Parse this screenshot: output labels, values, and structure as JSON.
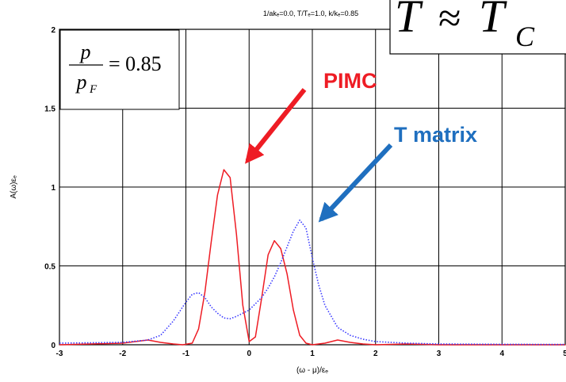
{
  "chart_data": {
    "type": "line",
    "title": "1/ak_F=0.0, T/T_c=1.0, k/k_F=0.85",
    "title_display": "1/akₑ=0.0, T/Tₑ=1.0, k/kₑ=0.85",
    "xlabel": "(ω - μ)/ε_F",
    "xlabel_display": "(ω - μ)/εₑ",
    "ylabel": "A(ω)ε_F",
    "ylabel_display": "A(ω)εₑ",
    "xlim": [
      -3,
      5
    ],
    "ylim": [
      0,
      2
    ],
    "xticks": [
      -3,
      -2,
      -1,
      0,
      1,
      2,
      3,
      4,
      5
    ],
    "yticks": [
      0,
      0.5,
      1,
      1.5,
      2
    ],
    "ytick_labels": [
      "0",
      "0.5",
      "1",
      "1.5",
      "2"
    ],
    "grid": true,
    "legend": "none",
    "series": [
      {
        "name": "PIMC",
        "color": "#ee1c24",
        "style": "solid",
        "x": [
          -3.0,
          -2.5,
          -2.0,
          -1.8,
          -1.6,
          -1.4,
          -1.2,
          -1.05,
          -0.9,
          -0.8,
          -0.7,
          -0.6,
          -0.5,
          -0.4,
          -0.3,
          -0.2,
          -0.1,
          0.0,
          0.1,
          0.2,
          0.3,
          0.4,
          0.5,
          0.6,
          0.7,
          0.8,
          0.9,
          1.0,
          1.2,
          1.4,
          1.6,
          1.8,
          2.0,
          2.5,
          3.0,
          3.5,
          4.0,
          5.0
        ],
        "y": [
          0.0,
          0.005,
          0.01,
          0.02,
          0.03,
          0.015,
          0.005,
          0.0,
          0.01,
          0.1,
          0.33,
          0.65,
          0.95,
          1.11,
          1.06,
          0.7,
          0.25,
          0.02,
          0.05,
          0.3,
          0.57,
          0.66,
          0.61,
          0.45,
          0.22,
          0.06,
          0.01,
          0.0,
          0.01,
          0.03,
          0.015,
          0.005,
          0.0,
          0.005,
          0.0,
          0.0,
          0.0,
          0.0
        ]
      },
      {
        "name": "T matrix",
        "color": "#3a3aff",
        "style": "dotted",
        "x": [
          -3.0,
          -2.0,
          -1.6,
          -1.4,
          -1.2,
          -1.1,
          -1.0,
          -0.9,
          -0.8,
          -0.7,
          -0.6,
          -0.5,
          -0.4,
          -0.3,
          -0.2,
          -0.1,
          0.0,
          0.1,
          0.2,
          0.3,
          0.4,
          0.5,
          0.6,
          0.7,
          0.8,
          0.9,
          1.0,
          1.1,
          1.2,
          1.4,
          1.6,
          1.8,
          2.0,
          2.5,
          3.0,
          4.0,
          5.0
        ],
        "y": [
          0.01,
          0.015,
          0.03,
          0.06,
          0.15,
          0.21,
          0.27,
          0.32,
          0.33,
          0.3,
          0.24,
          0.2,
          0.17,
          0.165,
          0.18,
          0.2,
          0.22,
          0.26,
          0.3,
          0.36,
          0.43,
          0.52,
          0.62,
          0.72,
          0.79,
          0.74,
          0.55,
          0.38,
          0.25,
          0.11,
          0.06,
          0.035,
          0.02,
          0.01,
          0.005,
          0.003,
          0.002
        ]
      }
    ]
  },
  "annotations": {
    "ratio_formula": {
      "numerator": "p",
      "denominator": "p_F",
      "den_main": "p",
      "den_sub": "F",
      "value": "= 0.85"
    },
    "temperature_box": {
      "main": "T",
      "relation": "≈",
      "rhs_main": "T",
      "rhs_sub": "C"
    },
    "pimc_label": "PIMC",
    "tmatrix_label": "T matrix",
    "pimc_color": "#ee1c24",
    "tmatrix_color": "#1f6fbf"
  }
}
